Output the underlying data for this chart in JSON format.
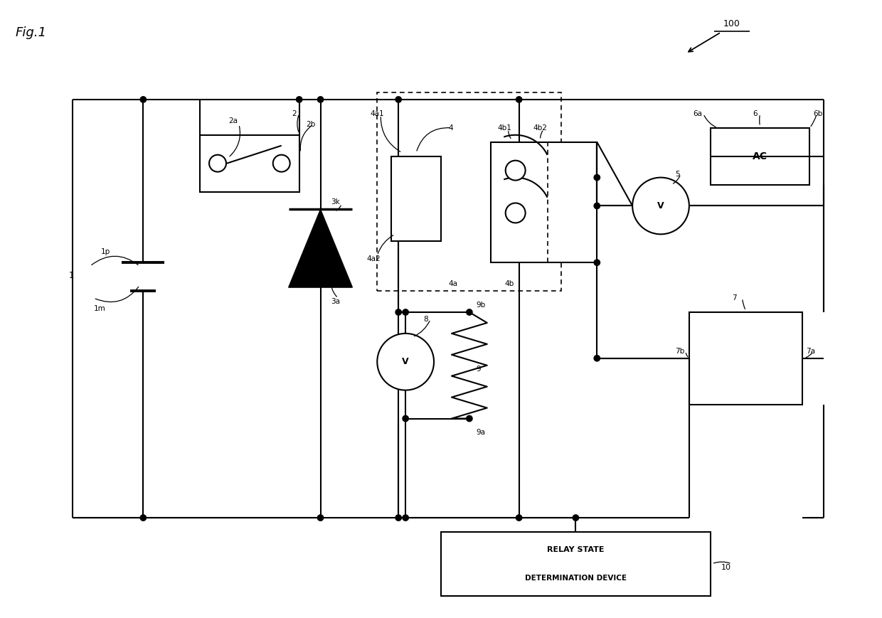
{
  "fig_label": "Fig.1",
  "note_100": "100",
  "ac_text": "AC",
  "rsd_text1": "RELAY STATE",
  "rsd_text2": "DETERMINATION DEVICE",
  "bg": "#ffffff"
}
